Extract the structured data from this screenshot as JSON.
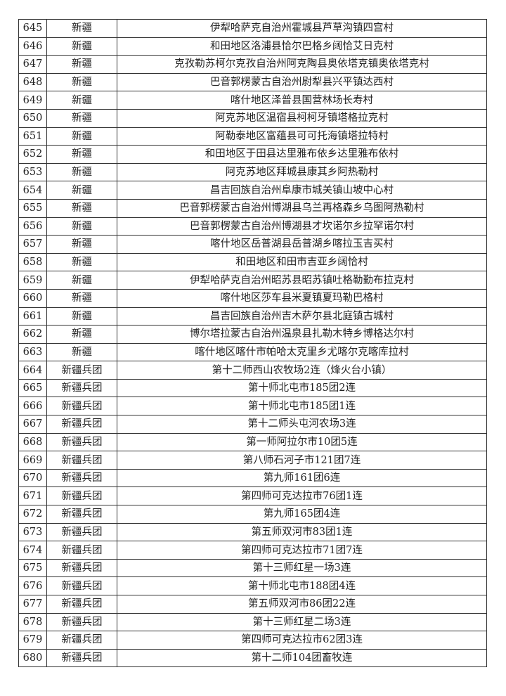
{
  "table": {
    "rows": [
      [
        "645",
        "新疆",
        "伊犁哈萨克自治州霍城县芦草沟镇四宫村"
      ],
      [
        "646",
        "新疆",
        "和田地区洛浦县恰尔巴格乡阔恰艾日克村"
      ],
      [
        "647",
        "新疆",
        "克孜勒苏柯尔克孜自治州阿克陶县奥依塔克镇奥依塔克村"
      ],
      [
        "648",
        "新疆",
        "巴音郭楞蒙古自治州尉犁县兴平镇达西村"
      ],
      [
        "649",
        "新疆",
        "喀什地区泽普县国营林场长寿村"
      ],
      [
        "650",
        "新疆",
        "阿克苏地区温宿县柯柯牙镇塔格拉克村"
      ],
      [
        "651",
        "新疆",
        "阿勒泰地区富蕴县可可托海镇塔拉特村"
      ],
      [
        "652",
        "新疆",
        "和田地区于田县达里雅布依乡达里雅布依村"
      ],
      [
        "653",
        "新疆",
        "阿克苏地区拜城县康其乡阿热勒村"
      ],
      [
        "654",
        "新疆",
        "昌吉回族自治州阜康市城关镇山坡中心村"
      ],
      [
        "655",
        "新疆",
        "巴音郭楞蒙古自治州博湖县乌兰再格森乡乌图阿热勒村"
      ],
      [
        "656",
        "新疆",
        "巴音郭楞蒙古自治州博湖县才坎诺尔乡拉罕诺尔村"
      ],
      [
        "657",
        "新疆",
        "喀什地区岳普湖县岳普湖乡喀拉玉吉买村"
      ],
      [
        "658",
        "新疆",
        "和田地区和田市吉亚乡阔恰村"
      ],
      [
        "659",
        "新疆",
        "伊犁哈萨克自治州昭苏县昭苏镇吐格勒勤布拉克村"
      ],
      [
        "660",
        "新疆",
        "喀什地区莎车县米夏镇夏玛勒巴格村"
      ],
      [
        "661",
        "新疆",
        "昌吉回族自治州吉木萨尔县北庭镇古城村"
      ],
      [
        "662",
        "新疆",
        "博尔塔拉蒙古自治州温泉县扎勒木特乡博格达尔村"
      ],
      [
        "663",
        "新疆",
        "喀什地区喀什市帕哈太克里乡尤喀尔克喀库拉村"
      ],
      [
        "664",
        "新疆兵团",
        "第十二师西山农牧场2连（烽火台小镇）"
      ],
      [
        "665",
        "新疆兵团",
        "第十师北屯市185团2连"
      ],
      [
        "666",
        "新疆兵团",
        "第十师北屯市185团1连"
      ],
      [
        "667",
        "新疆兵团",
        "第十二师头屯河农场3连"
      ],
      [
        "668",
        "新疆兵团",
        "第一师阿拉尔市10团5连"
      ],
      [
        "669",
        "新疆兵团",
        "第八师石河子市121团7连"
      ],
      [
        "670",
        "新疆兵团",
        "第九师161团6连"
      ],
      [
        "671",
        "新疆兵团",
        "第四师可克达拉市76团1连"
      ],
      [
        "672",
        "新疆兵团",
        "第九师165团4连"
      ],
      [
        "673",
        "新疆兵团",
        "第五师双河市83团1连"
      ],
      [
        "674",
        "新疆兵团",
        "第四师可克达拉市71团7连"
      ],
      [
        "675",
        "新疆兵团",
        "第十三师红星一场3连"
      ],
      [
        "676",
        "新疆兵团",
        "第十师北屯市188团4连"
      ],
      [
        "677",
        "新疆兵团",
        "第五师双河市86团22连"
      ],
      [
        "678",
        "新疆兵团",
        "第十三师红星二场3连"
      ],
      [
        "679",
        "新疆兵团",
        "第四师可克达拉市62团3连"
      ],
      [
        "680",
        "新疆兵团",
        "第十二师104团畜牧连"
      ]
    ]
  }
}
